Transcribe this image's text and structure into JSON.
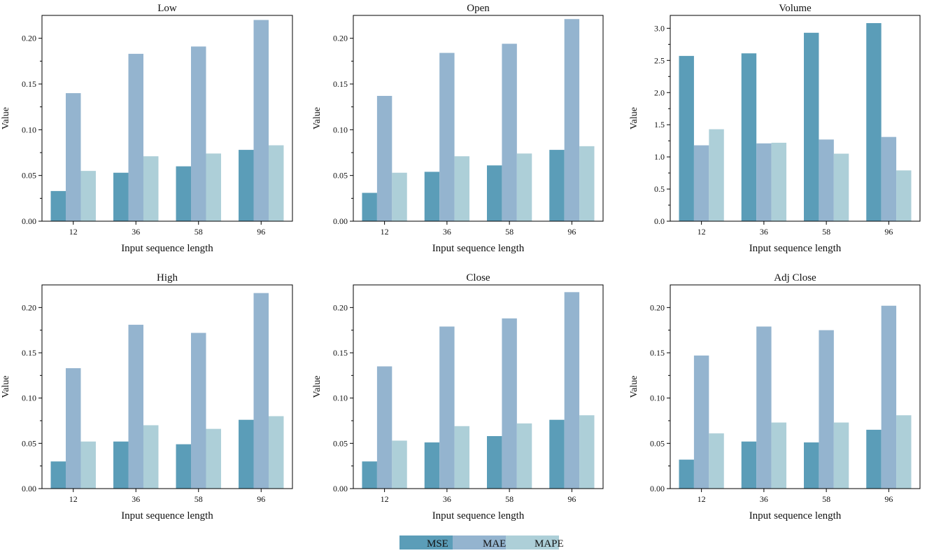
{
  "chart_data": [
    {
      "type": "bar",
      "title": "Low",
      "xlabel": "Input sequence length",
      "ylabel": "Value",
      "categories": [
        "12",
        "36",
        "58",
        "96"
      ],
      "ylim": [
        0,
        0.225
      ],
      "yticks": [
        "0.00",
        "0.05",
        "0.10",
        "0.15",
        "0.20"
      ],
      "series": [
        {
          "name": "MSE",
          "values": [
            0.033,
            0.053,
            0.06,
            0.078
          ]
        },
        {
          "name": "MAE",
          "values": [
            0.14,
            0.183,
            0.191,
            0.22
          ]
        },
        {
          "name": "MAPE",
          "values": [
            0.055,
            0.071,
            0.074,
            0.083
          ]
        }
      ]
    },
    {
      "type": "bar",
      "title": "Open",
      "xlabel": "Input sequence length",
      "ylabel": "Value",
      "categories": [
        "12",
        "36",
        "58",
        "96"
      ],
      "ylim": [
        0,
        0.225
      ],
      "yticks": [
        "0.00",
        "0.05",
        "0.10",
        "0.15",
        "0.20"
      ],
      "series": [
        {
          "name": "MSE",
          "values": [
            0.031,
            0.054,
            0.061,
            0.078
          ]
        },
        {
          "name": "MAE",
          "values": [
            0.137,
            0.184,
            0.194,
            0.221
          ]
        },
        {
          "name": "MAPE",
          "values": [
            0.053,
            0.071,
            0.074,
            0.082
          ]
        }
      ]
    },
    {
      "type": "bar",
      "title": "Volume",
      "xlabel": "Input sequence length",
      "ylabel": "Value",
      "categories": [
        "12",
        "36",
        "58",
        "96"
      ],
      "ylim": [
        0,
        3.2
      ],
      "yticks": [
        "0.0",
        "0.5",
        "1.0",
        "1.5",
        "2.0",
        "2.5",
        "3.0"
      ],
      "series": [
        {
          "name": "MSE",
          "values": [
            2.57,
            2.61,
            2.93,
            3.08
          ]
        },
        {
          "name": "MAE",
          "values": [
            1.18,
            1.21,
            1.27,
            1.31
          ]
        },
        {
          "name": "MAPE",
          "values": [
            1.43,
            1.22,
            1.05,
            0.79
          ]
        }
      ]
    },
    {
      "type": "bar",
      "title": "High",
      "xlabel": "Input sequence length",
      "ylabel": "Value",
      "categories": [
        "12",
        "36",
        "58",
        "96"
      ],
      "ylim": [
        0,
        0.225
      ],
      "yticks": [
        "0.00",
        "0.05",
        "0.10",
        "0.15",
        "0.20"
      ],
      "series": [
        {
          "name": "MSE",
          "values": [
            0.03,
            0.052,
            0.049,
            0.076
          ]
        },
        {
          "name": "MAE",
          "values": [
            0.133,
            0.181,
            0.172,
            0.216
          ]
        },
        {
          "name": "MAPE",
          "values": [
            0.052,
            0.07,
            0.066,
            0.08
          ]
        }
      ]
    },
    {
      "type": "bar",
      "title": "Close",
      "xlabel": "Input sequence length",
      "ylabel": "Value",
      "categories": [
        "12",
        "36",
        "58",
        "96"
      ],
      "ylim": [
        0,
        0.225
      ],
      "yticks": [
        "0.00",
        "0.05",
        "0.10",
        "0.15",
        "0.20"
      ],
      "series": [
        {
          "name": "MSE",
          "values": [
            0.03,
            0.051,
            0.058,
            0.076
          ]
        },
        {
          "name": "MAE",
          "values": [
            0.135,
            0.179,
            0.188,
            0.217
          ]
        },
        {
          "name": "MAPE",
          "values": [
            0.053,
            0.069,
            0.072,
            0.081
          ]
        }
      ]
    },
    {
      "type": "bar",
      "title": "Adj Close",
      "xlabel": "Input sequence length",
      "ylabel": "Value",
      "categories": [
        "12",
        "36",
        "58",
        "96"
      ],
      "ylim": [
        0,
        0.225
      ],
      "yticks": [
        "0.00",
        "0.05",
        "0.10",
        "0.15",
        "0.20"
      ],
      "series": [
        {
          "name": "MSE",
          "values": [
            0.032,
            0.052,
            0.051,
            0.065
          ]
        },
        {
          "name": "MAE",
          "values": [
            0.147,
            0.179,
            0.175,
            0.202
          ]
        },
        {
          "name": "MAPE",
          "values": [
            0.061,
            0.073,
            0.073,
            0.081
          ]
        }
      ]
    }
  ],
  "legend": {
    "items": [
      {
        "name": "MSE",
        "color": "#5b9db8"
      },
      {
        "name": "MAE",
        "color": "#94b4cf"
      },
      {
        "name": "MAPE",
        "color": "#adcfd8"
      }
    ]
  }
}
